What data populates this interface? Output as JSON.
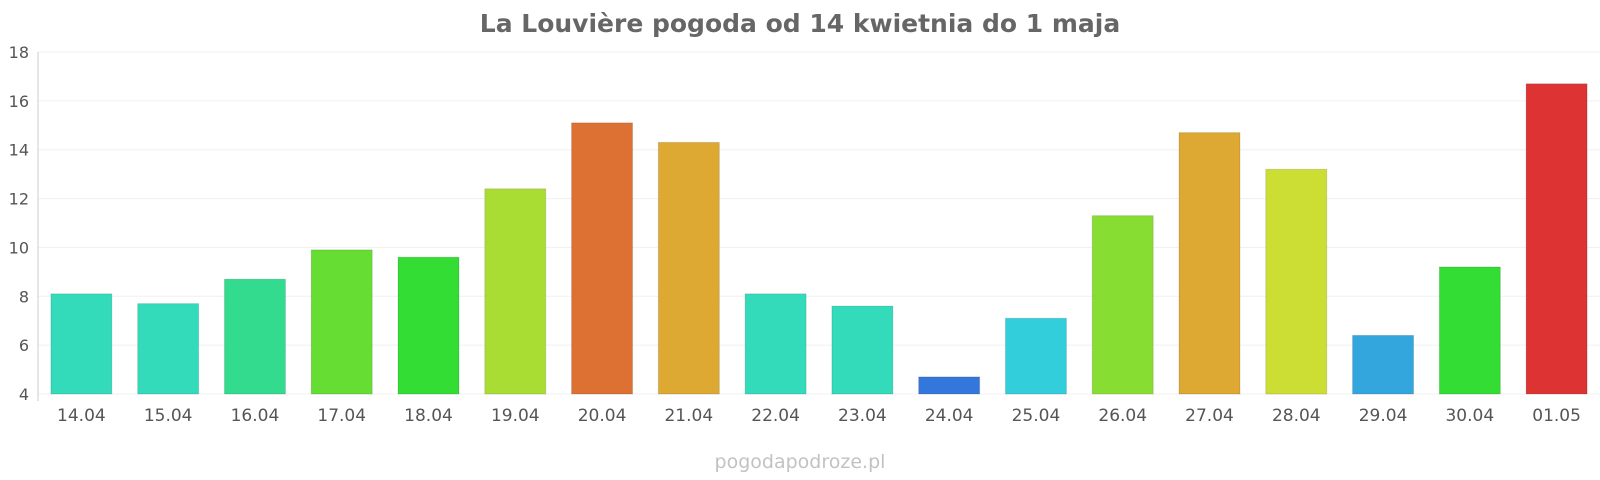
{
  "chart_data": {
    "type": "bar",
    "title": "La Louvière pogoda od 14 kwietnia do 1 maja",
    "categories": [
      "14.04",
      "15.04",
      "16.04",
      "17.04",
      "18.04",
      "19.04",
      "20.04",
      "21.04",
      "22.04",
      "23.04",
      "24.04",
      "25.04",
      "26.04",
      "27.04",
      "28.04",
      "29.04",
      "30.04",
      "01.05"
    ],
    "values": [
      8.1,
      7.7,
      8.7,
      9.9,
      9.6,
      12.4,
      15.1,
      14.3,
      8.1,
      7.6,
      4.7,
      7.1,
      11.3,
      14.7,
      13.2,
      6.4,
      9.2,
      16.7
    ],
    "colors": [
      "#33dbbb",
      "#33dbbb",
      "#33db8f",
      "#66dd33",
      "#33dd33",
      "#aadd33",
      "#dd7033",
      "#dda933",
      "#33dbbb",
      "#33dbbb",
      "#3377dd",
      "#33cedb",
      "#88dd33",
      "#dda933",
      "#ccdd33",
      "#33a6dd",
      "#33dd33",
      "#dd3333"
    ],
    "ylim": [
      4,
      18
    ],
    "yticks": [
      4,
      6,
      8,
      10,
      12,
      14,
      16,
      18
    ],
    "grid": true,
    "xlabel": "",
    "ylabel": ""
  },
  "watermark": "pogodapodroze.pl"
}
